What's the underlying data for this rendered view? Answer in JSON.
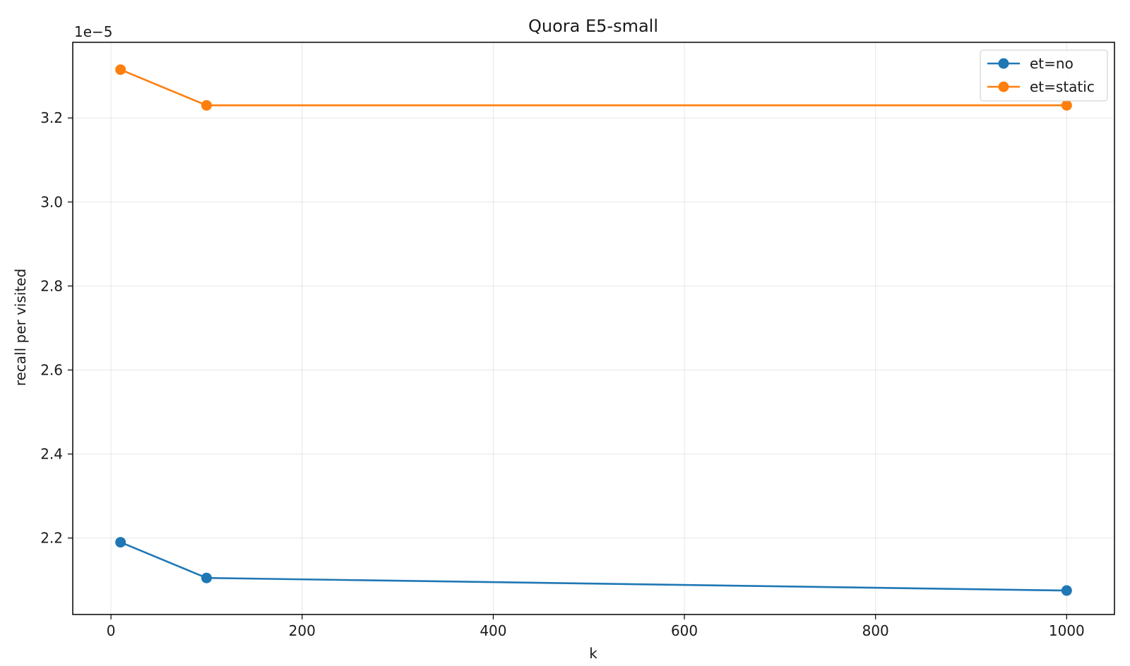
{
  "chart_data": {
    "type": "line",
    "title": "Quora E5-small",
    "xlabel": "k",
    "ylabel": "recall per visited",
    "y_offset_label": "1e−5",
    "x": [
      10,
      100,
      1000
    ],
    "series": [
      {
        "name": "et=no",
        "color": "#1f77b4",
        "values": [
          2.19,
          2.105,
          2.075
        ]
      },
      {
        "name": "et=static",
        "color": "#ff7f0e",
        "values": [
          3.315,
          3.23,
          3.23
        ]
      }
    ],
    "xlim": [
      -40,
      1050
    ],
    "ylim": [
      2.018,
      3.38
    ],
    "x_ticks": [
      0,
      200,
      400,
      600,
      800,
      1000
    ],
    "x_tick_labels": [
      "0",
      "200",
      "400",
      "600",
      "800",
      "1000"
    ],
    "y_ticks": [
      2.2,
      2.4,
      2.6,
      2.8,
      3.0,
      3.2
    ],
    "y_tick_labels": [
      "2.2",
      "2.4",
      "2.6",
      "2.8",
      "3.0",
      "3.2"
    ],
    "grid": true,
    "legend_position": "top-right"
  }
}
